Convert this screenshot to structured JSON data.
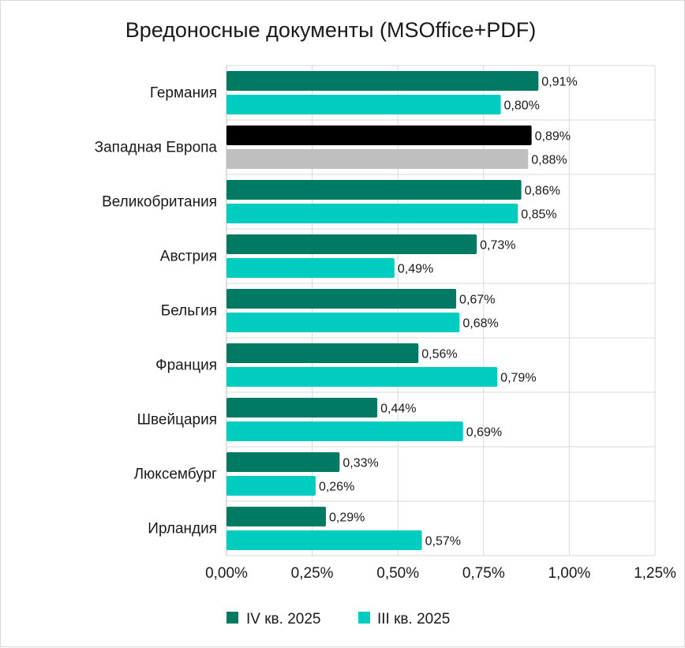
{
  "chart_data": {
    "type": "bar",
    "orientation": "horizontal",
    "title": "Вредоносные документы (MSOffice+PDF)",
    "categories": [
      "Германия",
      "Западная Европа",
      "Великобритания",
      "Австрия",
      "Бельгия",
      "Франция",
      "Швейцария",
      "Люксембург",
      "Ирландия"
    ],
    "series": [
      {
        "name": "IV кв. 2025",
        "color": "#007a63",
        "values": [
          0.91,
          0.89,
          0.86,
          0.73,
          0.67,
          0.56,
          0.44,
          0.33,
          0.29
        ],
        "labels": [
          "0,91%",
          "0,89%",
          "0,86%",
          "0,73%",
          "0,67%",
          "0,56%",
          "0,44%",
          "0,33%",
          "0,29%"
        ]
      },
      {
        "name": "III кв. 2025",
        "color": "#00ccbf",
        "values": [
          0.8,
          0.88,
          0.85,
          0.49,
          0.68,
          0.79,
          0.69,
          0.26,
          0.57
        ],
        "labels": [
          "0,80%",
          "0,88%",
          "0,85%",
          "0,49%",
          "0,68%",
          "0,79%",
          "0,69%",
          "0,26%",
          "0,57%"
        ]
      }
    ],
    "highlight": {
      "category": "Западная Европа",
      "colors": [
        "#000000",
        "#bfbfbf"
      ]
    },
    "xlim": [
      0,
      1.25
    ],
    "xticks": [
      0,
      0.25,
      0.5,
      0.75,
      1.0,
      1.25
    ],
    "xtick_labels": [
      "0,00%",
      "0,25%",
      "0,50%",
      "0,75%",
      "1,00%",
      "1,25%"
    ],
    "grid": true,
    "legend_position": "bottom"
  }
}
